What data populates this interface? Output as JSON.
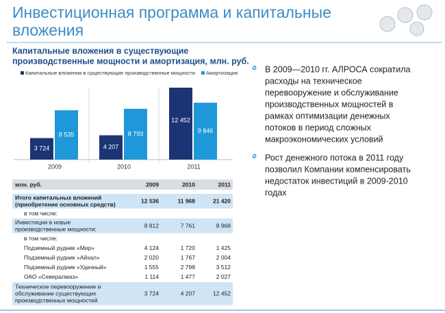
{
  "header": {
    "title": [
      "Инвестиционная программа и капитальные",
      "вложения"
    ]
  },
  "chart_data": {
    "type": "bar",
    "title": [
      "Капитальные вложения в существующие",
      "производственные мощности и амортизация, млн. руб."
    ],
    "categories": [
      "2009",
      "2010",
      "2011"
    ],
    "series": [
      {
        "name": "Капитальные вложения в существующие производственные мощности",
        "color": "#1b3473",
        "values": [
          3724,
          4207,
          12452
        ],
        "value_labels": [
          "3 724",
          "4 207",
          "12 452"
        ]
      },
      {
        "name": "Амортизация",
        "color": "#1e98d8",
        "values": [
          8535,
          8793,
          9846
        ],
        "value_labels": [
          "8 535",
          "8 793",
          "9 846"
        ]
      }
    ]
  },
  "table": {
    "header": [
      "млн. руб.",
      "2009",
      "2010",
      "2011"
    ],
    "rows": [
      {
        "label": [
          "Итого капитальных вложений",
          "(приобретение основных средств)"
        ],
        "values": [
          "12 536",
          "11 968",
          "21 420"
        ]
      },
      {
        "label": [
          "в том числе:"
        ]
      },
      {
        "label": [
          "Инвестиции в новые",
          "производственные мощности:"
        ],
        "values": [
          "8 812",
          "7 761",
          "8 968"
        ]
      },
      {
        "label": [
          "в том числе:"
        ]
      },
      {
        "label": [
          "Подземный рудник «Мир»"
        ],
        "values": [
          "4 124",
          "1 720",
          "1 425"
        ]
      },
      {
        "label": [
          "Подземный рудник «Айхал»"
        ],
        "values": [
          "2 020",
          "1 767",
          "2 004"
        ]
      },
      {
        "label": [
          "Подземный рудник «Удачный»"
        ],
        "values": [
          "1 555",
          "2 798",
          "3 512"
        ]
      },
      {
        "label": [
          "ОАО «Севералмаз»"
        ],
        "values": [
          "1 114",
          "1 477",
          "2 027"
        ]
      },
      {
        "label": [
          "Техническое перевооружение и",
          "обслуживание существующих",
          "производственных мощностей"
        ],
        "values": [
          "3 724",
          "4 207",
          "12 452"
        ]
      }
    ]
  },
  "bullets": [
    [
      "В 2009—2010 гг. АЛРОСА сократила",
      "расходы на техническое",
      "перевооружение и обслуживание",
      "производственных мощностей в",
      "рамках оптимизации денежных",
      "потоков в период сложных",
      "макроэкономических условий"
    ],
    [
      "Рост денежного потока в 2011 году",
      "позволил Компании компенсировать",
      "недостаток инвестиций в 2009-2010",
      "годах"
    ]
  ]
}
